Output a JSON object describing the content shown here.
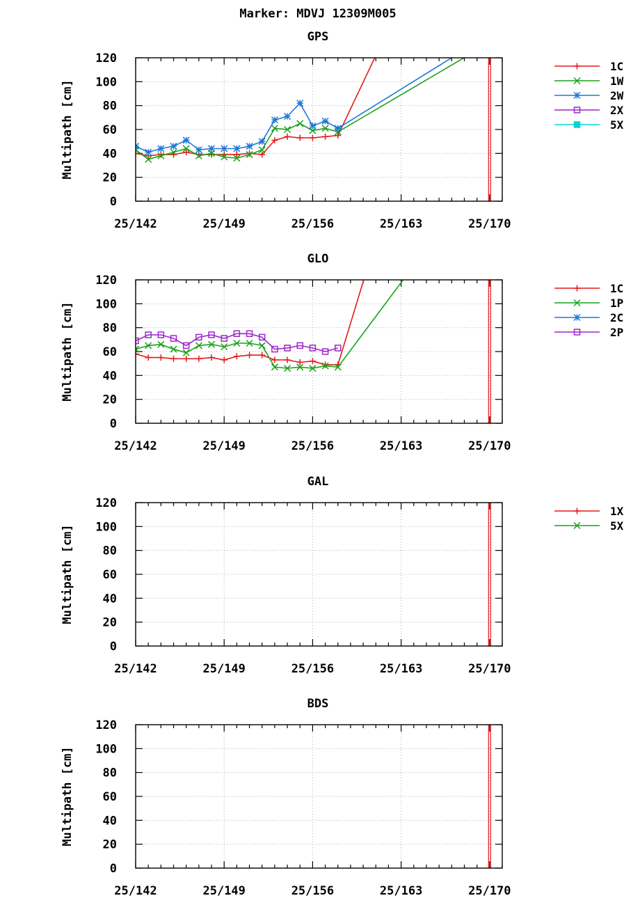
{
  "figure_title": "Marker: MDVJ 12309M005",
  "chart_data": [
    {
      "type": "line",
      "title": "GPS",
      "ylabel": "Multipath [cm]",
      "ylim": [
        0,
        120
      ],
      "yticks": [
        0,
        20,
        40,
        60,
        80,
        100,
        120
      ],
      "xlim": [
        142,
        171
      ],
      "xticks": [
        142,
        149,
        156,
        163,
        170
      ],
      "xtick_labels": [
        "25/142",
        "25/149",
        "25/156",
        "25/163",
        "25/170"
      ],
      "grid": true,
      "legend_position": "right",
      "marker_line_x": 170,
      "marker_line_color": "#e41a1c",
      "series": [
        {
          "name": "1C",
          "color": "#e41a1c",
          "marker": "plus",
          "x": [
            142,
            143,
            144,
            145,
            146,
            147,
            148,
            149,
            150,
            151,
            152,
            153,
            154,
            155,
            156,
            157,
            158,
            161
          ],
          "y": [
            40,
            38,
            39,
            39,
            41,
            39,
            39,
            39,
            39,
            40,
            39,
            51,
            54,
            53,
            53,
            54,
            55,
            122
          ]
        },
        {
          "name": "1W",
          "color": "#1aa11a",
          "marker": "cross",
          "x": [
            142,
            143,
            144,
            145,
            146,
            147,
            148,
            149,
            150,
            151,
            152,
            153,
            154,
            155,
            156,
            157,
            158,
            168.3
          ],
          "y": [
            43,
            35,
            38,
            41,
            44,
            38,
            40,
            37,
            36,
            39,
            43,
            61,
            60,
            65,
            59,
            61,
            58,
            122
          ]
        },
        {
          "name": "2W",
          "color": "#1f78d8",
          "marker": "star",
          "x": [
            142,
            143,
            144,
            145,
            146,
            147,
            148,
            149,
            150,
            151,
            152,
            153,
            154,
            155,
            156,
            157,
            158,
            167.3
          ],
          "y": [
            46,
            41,
            44,
            46,
            51,
            43,
            44,
            44,
            44,
            46,
            50,
            68,
            71,
            82,
            63,
            67,
            61,
            122
          ]
        },
        {
          "name": "2X",
          "color": "#9c27c9",
          "marker": "square",
          "x": [],
          "y": []
        },
        {
          "name": "5X",
          "color": "#00d5d5",
          "marker": "filled-square",
          "x": [],
          "y": []
        }
      ]
    },
    {
      "type": "line",
      "title": "GLO",
      "ylabel": "Multipath [cm]",
      "ylim": [
        0,
        120
      ],
      "yticks": [
        0,
        20,
        40,
        60,
        80,
        100,
        120
      ],
      "xlim": [
        142,
        171
      ],
      "xticks": [
        142,
        149,
        156,
        163,
        170
      ],
      "xtick_labels": [
        "25/142",
        "25/149",
        "25/156",
        "25/163",
        "25/170"
      ],
      "grid": true,
      "legend_position": "right",
      "marker_line_x": 170,
      "marker_line_color": "#e41a1c",
      "series": [
        {
          "name": "1C",
          "color": "#e41a1c",
          "marker": "plus",
          "x": [
            142,
            143,
            144,
            145,
            146,
            147,
            148,
            149,
            150,
            151,
            152,
            153,
            154,
            155,
            156,
            157,
            158,
            160.1
          ],
          "y": [
            58,
            55,
            55,
            54,
            54,
            54,
            55,
            53,
            56,
            57,
            57,
            53,
            53,
            51,
            52,
            49,
            49,
            122
          ]
        },
        {
          "name": "1P",
          "color": "#1aa11a",
          "marker": "cross",
          "x": [
            142,
            143,
            144,
            145,
            146,
            147,
            148,
            149,
            150,
            151,
            152,
            153,
            154,
            155,
            156,
            157,
            158,
            163.3
          ],
          "y": [
            62,
            65,
            66,
            62,
            59,
            65,
            66,
            64,
            67,
            67,
            65,
            47,
            46,
            47,
            46,
            48,
            47,
            122
          ]
        },
        {
          "name": "2C",
          "color": "#1f78d8",
          "marker": "star",
          "x": [],
          "y": []
        },
        {
          "name": "2P",
          "color": "#9c27c9",
          "marker": "square",
          "x": [
            142,
            143,
            144,
            145,
            146,
            147,
            148,
            149,
            150,
            151,
            152,
            153,
            154,
            155,
            156,
            157,
            158
          ],
          "y": [
            69,
            74,
            74,
            71,
            65,
            72,
            74,
            71,
            75,
            75,
            72,
            62,
            63,
            65,
            63,
            60,
            63
          ]
        }
      ]
    },
    {
      "type": "line",
      "title": "GAL",
      "ylabel": "Multipath [cm]",
      "ylim": [
        0,
        120
      ],
      "yticks": [
        0,
        20,
        40,
        60,
        80,
        100,
        120
      ],
      "xlim": [
        142,
        171
      ],
      "xticks": [
        142,
        149,
        156,
        163,
        170
      ],
      "xtick_labels": [
        "25/142",
        "25/149",
        "25/156",
        "25/163",
        "25/170"
      ],
      "grid": true,
      "legend_position": "right",
      "marker_line_x": 170,
      "marker_line_color": "#e41a1c",
      "series": [
        {
          "name": "1X",
          "color": "#e41a1c",
          "marker": "plus",
          "x": [],
          "y": []
        },
        {
          "name": "5X",
          "color": "#1aa11a",
          "marker": "cross",
          "x": [],
          "y": []
        }
      ]
    },
    {
      "type": "line",
      "title": "BDS",
      "ylabel": "Multipath [cm]",
      "ylim": [
        0,
        120
      ],
      "yticks": [
        0,
        20,
        40,
        60,
        80,
        100,
        120
      ],
      "xlim": [
        142,
        171
      ],
      "xticks": [
        142,
        149,
        156,
        163,
        170
      ],
      "xtick_labels": [
        "25/142",
        "25/149",
        "25/156",
        "25/163",
        "25/170"
      ],
      "grid": true,
      "legend_position": "none",
      "marker_line_x": 170,
      "marker_line_color": "#e41a1c",
      "series": []
    }
  ]
}
